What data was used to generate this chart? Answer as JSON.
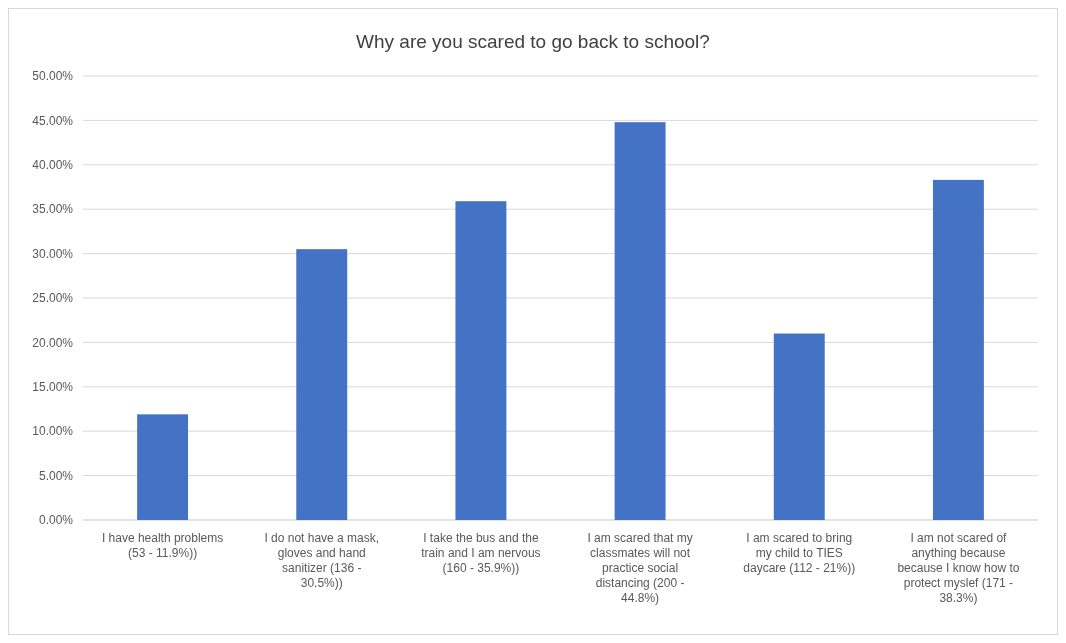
{
  "chart_data": {
    "type": "bar",
    "title": "Why are you scared to go back to school?",
    "categories": [
      "I have health problems (53 - 11.9%))",
      "I do not have a mask, gloves and hand sanitizer (136 - 30.5%))",
      "I take the bus and the train and I am nervous (160 - 35.9%))",
      "I am scared that my classmates will not practice social distancing (200 - 44.8%)",
      "I am scared to bring my child to TIES daycare (112 - 21%))",
      "I am not scared of anything because because I know how to protect myslef (171 - 38.3%)"
    ],
    "values": [
      11.9,
      30.5,
      35.9,
      44.8,
      21,
      38.3
    ],
    "color": "#4472c4",
    "ylim": [
      0,
      50
    ],
    "yticks": [
      {
        "value": 0,
        "label": "0.00%"
      },
      {
        "value": 5,
        "label": "5.00%"
      },
      {
        "value": 10,
        "label": "10.00%"
      },
      {
        "value": 15,
        "label": "15.00%"
      },
      {
        "value": 20,
        "label": "20.00%"
      },
      {
        "value": 25,
        "label": "25.00%"
      },
      {
        "value": 30,
        "label": "30.00%"
      },
      {
        "value": 35,
        "label": "35.00%"
      },
      {
        "value": 40,
        "label": "40.00%"
      },
      {
        "value": 45,
        "label": "45.00%"
      },
      {
        "value": 50,
        "label": "50.00%"
      }
    ],
    "grid": true
  }
}
